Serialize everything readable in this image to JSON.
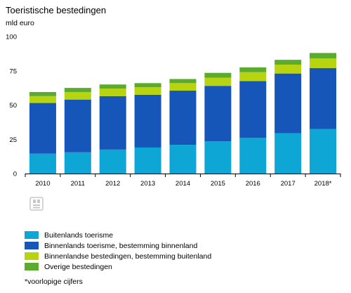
{
  "title": "Toeristische bestedingen",
  "unit_label": "mld euro",
  "footnote": "*voorlopige cijfers",
  "chart_data": {
    "type": "bar",
    "stacked": true,
    "title": "Toeristische bestedingen",
    "ylabel": "mld euro",
    "xlabel": "",
    "categories": [
      "2010",
      "2011",
      "2012",
      "2013",
      "2014",
      "2015",
      "2016",
      "2017",
      "2018*"
    ],
    "ylim": [
      0,
      100
    ],
    "yticks": [
      0,
      25,
      50,
      75,
      100
    ],
    "grid": false,
    "legend_position": "bottom",
    "series": [
      {
        "name": "Buitenlands toerisme",
        "color": "#0ea6d4",
        "values": [
          14.5,
          15.5,
          17.5,
          19,
          21,
          23.5,
          26,
          29.5,
          32.5
        ]
      },
      {
        "name": "Binnenlands toerisme, bestemming binnenland",
        "color": "#1656b8",
        "values": [
          37,
          38.5,
          39,
          38.5,
          39.5,
          40.5,
          41.5,
          43.5,
          44.5
        ]
      },
      {
        "name": "Binnenlandse bestedingen, bestemming buitenland",
        "color": "#b7d40f",
        "values": [
          5,
          5.5,
          5.5,
          5.5,
          5.5,
          6,
          6.5,
          6.5,
          7
        ]
      },
      {
        "name": "Overige bestedingen",
        "color": "#5bac2e",
        "values": [
          3,
          3,
          3,
          3,
          3,
          3.5,
          3.5,
          3.5,
          4
        ]
      }
    ]
  }
}
